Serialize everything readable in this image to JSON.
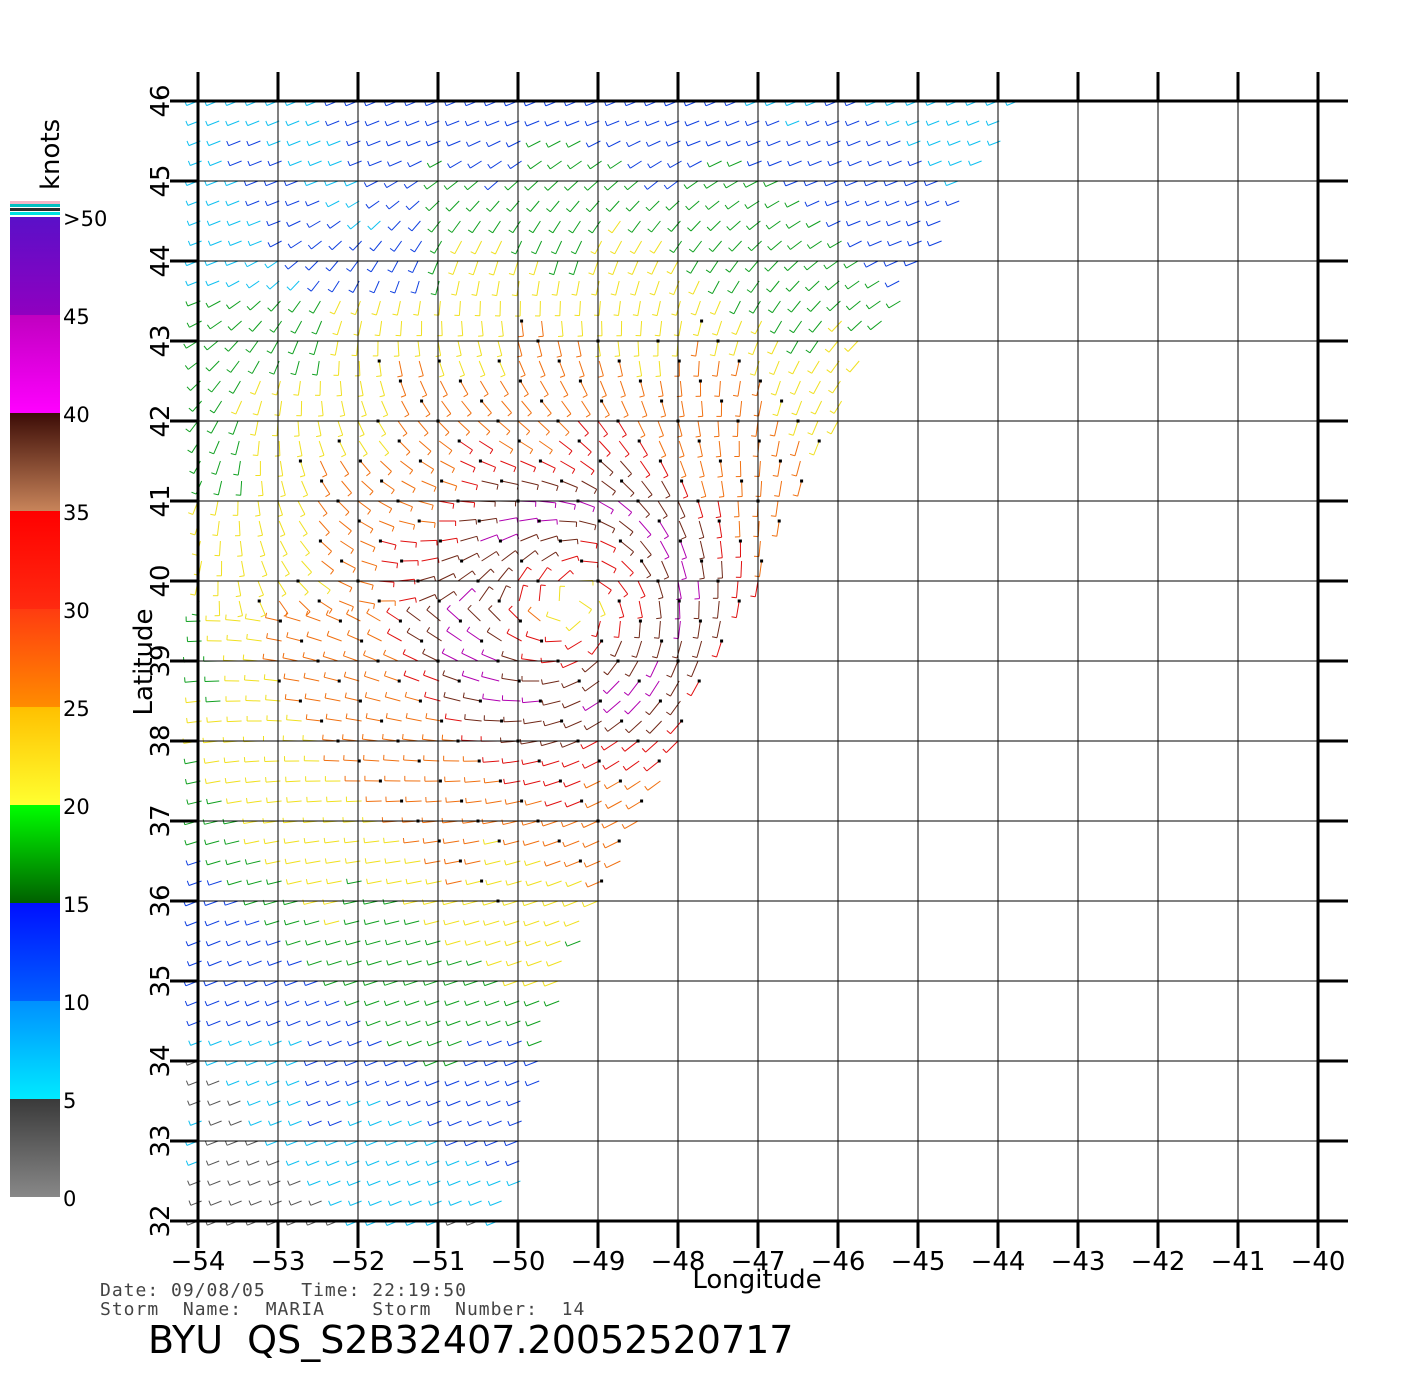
{
  "map": {
    "x_axis": {
      "label": "Longitude",
      "ticks": [
        "-54",
        "-53",
        "-52",
        "-51",
        "-50",
        "-49",
        "-48",
        "-47",
        "-46",
        "-45",
        "-44",
        "-43",
        "-42",
        "-41",
        "-40"
      ]
    },
    "y_axis": {
      "label": "Latitude",
      "ticks": [
        "32",
        "33",
        "34",
        "35",
        "36",
        "37",
        "38",
        "39",
        "40",
        "41",
        "42",
        "43",
        "44",
        "45",
        "46"
      ]
    },
    "lon_range": [
      -54,
      -40
    ],
    "lat_range": [
      32,
      46
    ],
    "grid": true,
    "swath_east_edge_lon_at_lat": [
      [
        32,
        -50.1
      ],
      [
        33,
        -49.9
      ],
      [
        35,
        -49.4
      ],
      [
        36,
        -49.0
      ],
      [
        37,
        -48.5
      ],
      [
        38,
        -48.0
      ],
      [
        39,
        -47.6
      ],
      [
        40,
        -47.0
      ],
      [
        41,
        -46.6
      ],
      [
        42,
        -46.0
      ],
      [
        43,
        -45.6
      ],
      [
        44,
        -44.9
      ],
      [
        45,
        -44.3
      ],
      [
        46,
        -43.6
      ]
    ]
  },
  "legend": {
    "title": "knots",
    "bands": [
      {
        "label": "0",
        "top_color": "#3a3a3a",
        "bottom_color": "#888888"
      },
      {
        "label": "5",
        "top_color": "#0090ff",
        "bottom_color": "#00eaff"
      },
      {
        "label": "10",
        "top_color": "#0010ff",
        "bottom_color": "#0060ff"
      },
      {
        "label": "15",
        "top_color": "#00ff00",
        "bottom_color": "#006000"
      },
      {
        "label": "20",
        "top_color": "#ffc000",
        "bottom_color": "#ffff30"
      },
      {
        "label": "25",
        "top_color": "#ff3c10",
        "bottom_color": "#ff8c00"
      },
      {
        "label": "30",
        "top_color": "#ff0000",
        "bottom_color": "#ff2a10"
      },
      {
        "label": "35",
        "top_color": "#3c0c06",
        "bottom_color": "#c8845a"
      },
      {
        "label": "40",
        "top_color": "#c000c0",
        "bottom_color": "#ff00ff"
      },
      {
        "label": "45",
        "top_color": "#5a10c8",
        "bottom_color": "#9000c0"
      }
    ],
    "top_label": ">50"
  },
  "info": {
    "line1": "Date: 09/08/05   Time: 22:19:50",
    "line2": "Storm  Name:  MARIA    Storm  Number:  14"
  },
  "title": "BYU  QS_S2B32407.20052520717"
}
